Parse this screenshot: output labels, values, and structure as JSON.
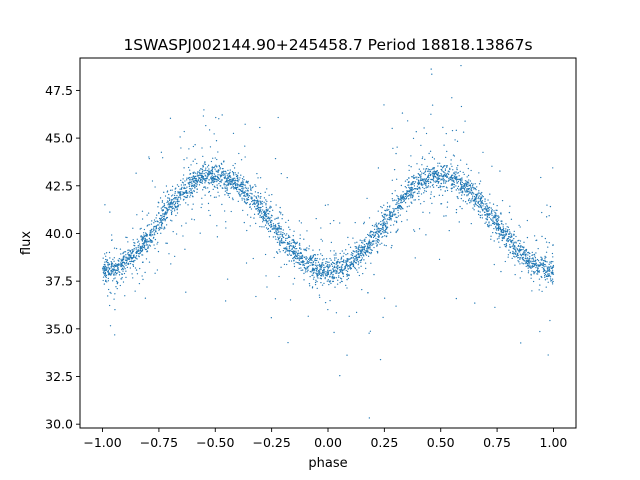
{
  "chart_data": {
    "type": "scatter",
    "title": "1SWASPJ002144.90+245458.7 Period 18818.13867s",
    "xlabel": "phase",
    "ylabel": "flux",
    "xlim": [
      -1.1,
      1.1
    ],
    "ylim": [
      29.8,
      49.2
    ],
    "xticks": [
      -1.0,
      -0.75,
      -0.5,
      -0.25,
      0.0,
      0.25,
      0.5,
      0.75,
      1.0
    ],
    "xtick_labels": [
      "−1.00",
      "−0.75",
      "−0.50",
      "−0.25",
      "0.00",
      "0.25",
      "0.50",
      "0.75",
      "1.00"
    ],
    "yticks": [
      30.0,
      32.5,
      35.0,
      37.5,
      40.0,
      42.5,
      45.0,
      47.5
    ],
    "ytick_labels": [
      "30.0",
      "32.5",
      "35.0",
      "37.5",
      "40.0",
      "42.5",
      "45.0",
      "47.5"
    ],
    "grid": false,
    "legend": "none",
    "marker_color": "#1f77b4",
    "series": [
      {
        "phase": [
          -1.0,
          -0.9,
          -0.8,
          -0.7,
          -0.6,
          -0.5,
          -0.4,
          -0.3,
          -0.2,
          -0.1,
          0.0,
          0.1,
          0.2,
          0.3,
          0.4,
          0.5,
          0.6,
          0.7,
          0.8,
          0.9,
          1.0
        ],
        "flux": [
          38.0,
          38.5,
          39.7,
          41.4,
          42.7,
          43.0,
          42.5,
          41.3,
          39.7,
          38.5,
          38.0,
          38.5,
          39.7,
          41.3,
          42.6,
          43.0,
          42.5,
          41.3,
          39.7,
          38.5,
          38.0
        ]
      }
    ]
  }
}
